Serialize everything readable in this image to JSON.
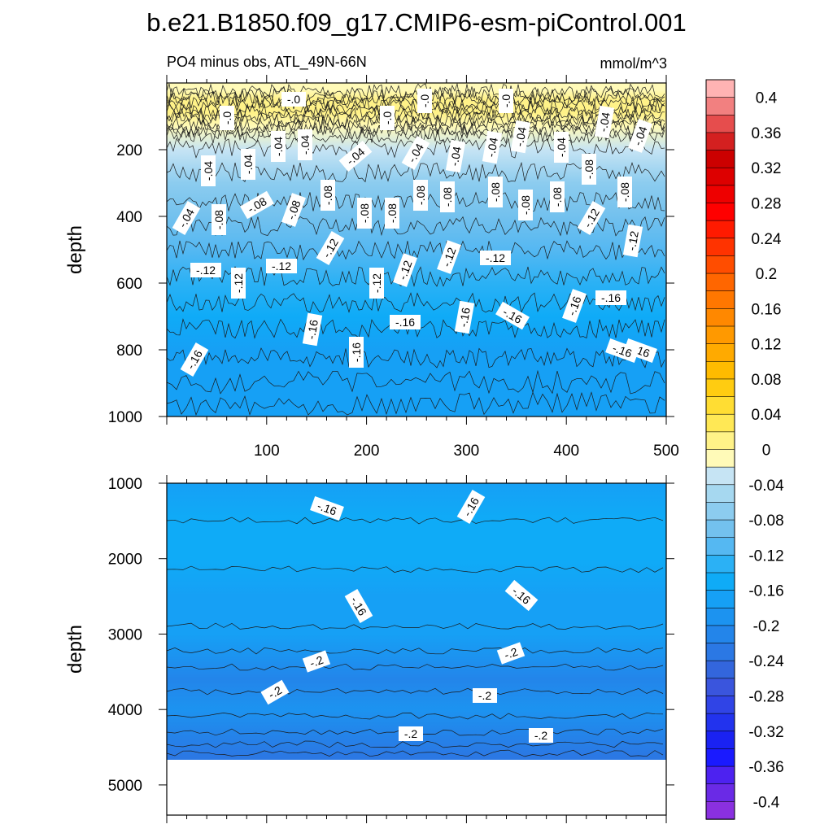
{
  "figure": {
    "title": "b.e21.B1850.f09_g17.CMIP6-esm-piControl.001",
    "subtitle_left": "PO4 minus obs, ATL_49N-66N",
    "subtitle_right": "mmol/m^3"
  },
  "chart_data": [
    {
      "type": "heatmap",
      "panel": "upper",
      "ylabel": "depth",
      "xlim": [
        0,
        500
      ],
      "ylim": [
        1000,
        0
      ],
      "y_reversed": true,
      "x_ticks": [
        "100",
        "200",
        "300",
        "400",
        "500"
      ],
      "y_ticks": [
        "200",
        "400",
        "600",
        "800",
        "1000"
      ],
      "depth_profile": [
        {
          "depth": 0,
          "value": -0.02
        },
        {
          "depth": 20,
          "value": -0.01
        },
        {
          "depth": 50,
          "value": 0.005
        },
        {
          "depth": 90,
          "value": 0.0
        },
        {
          "depth": 130,
          "value": -0.02
        },
        {
          "depth": 200,
          "value": -0.04
        },
        {
          "depth": 300,
          "value": -0.065
        },
        {
          "depth": 400,
          "value": -0.09
        },
        {
          "depth": 500,
          "value": -0.11
        },
        {
          "depth": 600,
          "value": -0.135
        },
        {
          "depth": 700,
          "value": -0.155
        },
        {
          "depth": 800,
          "value": -0.165
        },
        {
          "depth": 1000,
          "value": -0.17
        }
      ],
      "contour_labels": [
        "-.0",
        "-.0",
        "-.0",
        "-.0",
        "-.0",
        "-.04",
        "-.04",
        "-.04",
        "-.04",
        "-.04",
        "-.04",
        "-.04",
        "-.04",
        "-.04",
        "-.04",
        "-.04",
        "-.04",
        "-.04",
        "-.08",
        "-.08",
        "-.08",
        "-.08",
        "-.08",
        "-.08",
        "-.08",
        "-.08",
        "-.08",
        "-.08",
        "-.08",
        "-.08",
        "-.08",
        "-.12",
        "-.12",
        "-.12",
        "-.12",
        "-.12",
        "-.12",
        "-.12",
        "-.12",
        "-.12",
        "-.12",
        "-.16",
        "-.16",
        "-.16",
        "-.16",
        "-.16",
        "-.16",
        "-.16",
        "-.16",
        "-.16",
        "-.16"
      ]
    },
    {
      "type": "heatmap",
      "panel": "lower",
      "ylabel": "depth",
      "xlim": [
        0,
        500
      ],
      "ylim": [
        5400,
        1000
      ],
      "y_reversed": true,
      "y_ticks": [
        "1000",
        "2000",
        "3000",
        "4000",
        "5000"
      ],
      "no_data_below_depth": 4620,
      "depth_profile": [
        {
          "depth": 1000,
          "value": -0.17
        },
        {
          "depth": 1500,
          "value": -0.16
        },
        {
          "depth": 2000,
          "value": -0.15
        },
        {
          "depth": 2500,
          "value": -0.165
        },
        {
          "depth": 3000,
          "value": -0.18
        },
        {
          "depth": 3300,
          "value": -0.195
        },
        {
          "depth": 3600,
          "value": -0.205
        },
        {
          "depth": 4000,
          "value": -0.2
        },
        {
          "depth": 4300,
          "value": -0.21
        },
        {
          "depth": 4620,
          "value": -0.225
        }
      ],
      "contour_labels": [
        "-.16",
        "-.16",
        "-.16",
        "-.16",
        "-.2",
        "-.2",
        "-.2",
        "-.2",
        "-.2",
        "-.2"
      ]
    }
  ],
  "colorbar": {
    "min": -0.42,
    "max": 0.42,
    "step": 0.02,
    "labels": [
      "0.4",
      "0.36",
      "0.32",
      "0.28",
      "0.24",
      "0.2",
      "0.16",
      "0.12",
      "0.08",
      "0.04",
      "0",
      "-0.04",
      "-0.08",
      "-0.12",
      "-0.16",
      "-0.2",
      "-0.24",
      "-0.28",
      "-0.32",
      "-0.36",
      "-0.4"
    ],
    "colors": [
      "#ffb3b3",
      "#f28080",
      "#e64d4d",
      "#d42020",
      "#cc0000",
      "#dd0000",
      "#ee0000",
      "#ff0000",
      "#ff1a00",
      "#ff3300",
      "#ff4d00",
      "#ff6600",
      "#ff7700",
      "#ff8800",
      "#ff9900",
      "#ffaa00",
      "#ffbb00",
      "#ffcc11",
      "#ffdd33",
      "#ffe855",
      "#fff288",
      "#fffab8",
      "#c6e4f4",
      "#a6d8f0",
      "#8cccef",
      "#73c1ee",
      "#55b8f2",
      "#2bb1f5",
      "#0fabf7",
      "#16a0f5",
      "#1c93f0",
      "#2385ea",
      "#2b78e4",
      "#3366dd",
      "#3a55dd",
      "#3044e6",
      "#2233ee",
      "#1a22f2",
      "#1a1aff",
      "#4d22f0",
      "#6a2ae6",
      "#8a30e0"
    ]
  }
}
